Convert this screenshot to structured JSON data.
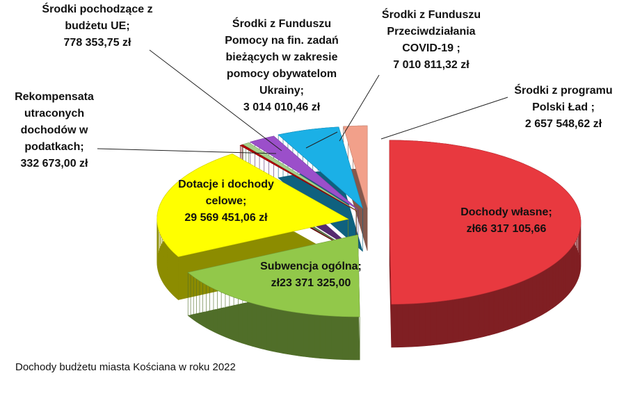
{
  "chart_data": {
    "type": "pie",
    "title": "Dochody budżetu miasta Kościana w roku 2022",
    "categories": [
      "Dochody własne;",
      "Subwencja ogólna;",
      "Dotacje i dochody celowe;",
      "Rekompensata utraconych dochodów w podatkach;",
      "Środki pochodzące z budżetu UE;",
      "Środki z Funduszu Pomocy na fin. zadań bieżących w zakresie pomocy obywatelom Ukrainy;",
      "Środki z Funduszu Przeciwdziałania COVID-19 ;",
      "Środki z programu Polski Ład ;"
    ],
    "values": [
      66317105.66,
      23371325.0,
      29569451.06,
      332673.0,
      778353.75,
      3014010.46,
      7010811.32,
      2657548.62
    ],
    "value_labels": [
      "zł66 317 105,66",
      "zł23 371 325,00",
      "29 569 451,06 zł",
      "332 673,00 zł",
      "778 353,75 zł",
      "3 014 010,46 zł",
      "7 010 811,32 zł",
      "2 657 548,62 zł"
    ],
    "colors": [
      "#e8393f",
      "#92c84a",
      "#ffff00",
      "#b20000",
      "#a6d08a",
      "#9b4fca",
      "#1bb0e6",
      "#f2a08a"
    ]
  }
}
